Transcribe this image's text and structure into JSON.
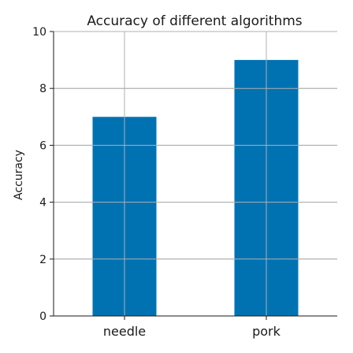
{
  "chart_data": {
    "type": "bar",
    "title": "Accuracy of different algorithms",
    "xlabel": "",
    "ylabel": "Accuracy",
    "categories": [
      "needle",
      "pork"
    ],
    "values": [
      7,
      9
    ],
    "ylim": [
      0,
      10
    ],
    "yticks": [
      0,
      2,
      4,
      6,
      8,
      10
    ],
    "grid": true,
    "bar_color": "#0072b2"
  }
}
